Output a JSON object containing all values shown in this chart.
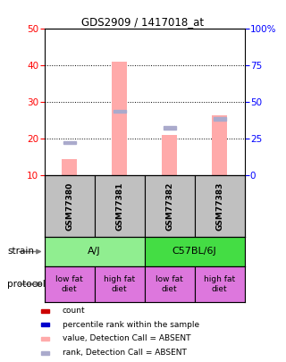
{
  "title": "GDS2909 / 1417018_at",
  "samples": [
    "GSM77380",
    "GSM77381",
    "GSM77382",
    "GSM77383"
  ],
  "bar_values_pink": [
    14.5,
    41.0,
    21.0,
    26.5
  ],
  "bar_values_blue": [
    19.0,
    27.5,
    23.0,
    25.5
  ],
  "ylim_min": 10,
  "ylim_max": 50,
  "yticks_left": [
    10,
    20,
    30,
    40,
    50
  ],
  "right_pct": [
    0,
    25,
    50,
    75,
    100
  ],
  "right_labels": [
    "0",
    "25",
    "50",
    "75",
    "100%"
  ],
  "protocol_labels": [
    "low fat\ndiet",
    "high fat\ndiet",
    "low fat\ndiet",
    "high fat\ndiet"
  ],
  "strain_groups": [
    {
      "label": "A/J",
      "start": 0,
      "end": 2,
      "color": "#90ee90"
    },
    {
      "label": "C57BL/6J",
      "start": 2,
      "end": 4,
      "color": "#44dd44"
    }
  ],
  "protocol_color": "#dd77dd",
  "sample_bg_color": "#c0c0c0",
  "pink_color": "#ffaaaa",
  "blue_color": "#aaaacc",
  "legend_colors": [
    "#cc0000",
    "#0000cc",
    "#ffaaaa",
    "#aaaacc"
  ],
  "legend_labels": [
    "count",
    "percentile rank within the sample",
    "value, Detection Call = ABSENT",
    "rank, Detection Call = ABSENT"
  ],
  "bar_width": 0.3
}
